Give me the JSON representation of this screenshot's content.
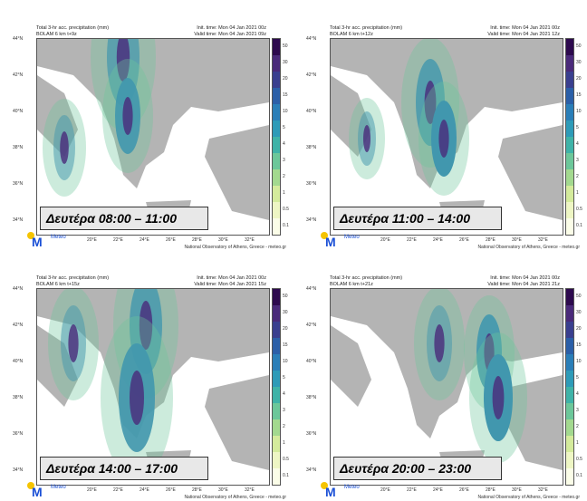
{
  "attribution": "National Observatory of Athens, Greece - meteo.gr",
  "title": "Total 3-hr acc. precipitation (mm)",
  "init_time": "Init. time: Mon 04 Jan 2021 00z",
  "logo_text": "Meteo",
  "lat_labels": [
    "44°N",
    "42°N",
    "40°N",
    "38°N",
    "36°N",
    "34°N"
  ],
  "lon_labels": [
    "20°E",
    "22°E",
    "24°E",
    "26°E",
    "28°E",
    "30°E",
    "32°E"
  ],
  "colorbar": {
    "levels": [
      "50",
      "30",
      "20",
      "15",
      "10",
      "5",
      "4",
      "3",
      "2",
      "1",
      "0.5",
      "0.1"
    ],
    "colors": [
      "#2d0a4e",
      "#4a2a7a",
      "#3a3f8f",
      "#2b5fa8",
      "#2a7eb8",
      "#2e9bb8",
      "#3fb3a8",
      "#6cc79a",
      "#a3d98f",
      "#d4eb9c",
      "#eef6c4",
      "#fbfde8"
    ]
  },
  "panels": [
    {
      "model": "BOLAM 6 km t+9z",
      "valid": "Valid time: Mon 04 Jan 2021 09z",
      "label": "Δευτέρα 08:00 – 11:00"
    },
    {
      "model": "BOLAM 6 km t+12z",
      "valid": "Valid time: Mon 04 Jan 2021 12z",
      "label": "Δευτέρα 11:00 – 14:00"
    },
    {
      "model": "BOLAM 6 km t+15z",
      "valid": "Valid time: Mon 04 Jan 2021 15z",
      "label": "Δευτέρα 14:00 – 17:00"
    },
    {
      "model": "BOLAM 6 km t+21z",
      "valid": "Valid time: Mon 04 Jan 2021 21z",
      "label": "Δευτέρα 20:00 – 23:00"
    }
  ],
  "colors": {
    "land": "#b4b4b4",
    "sea": "#ffffff"
  }
}
